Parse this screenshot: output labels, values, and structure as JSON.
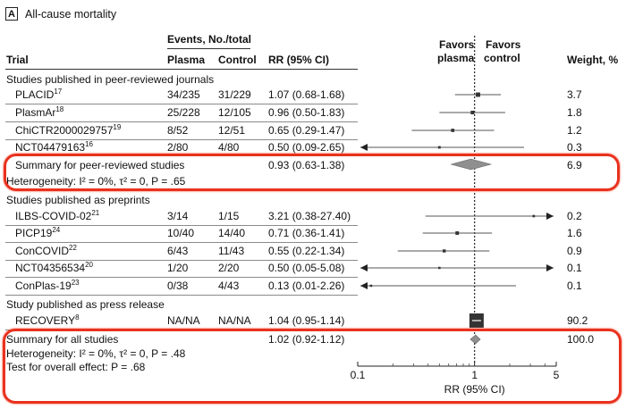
{
  "panel": {
    "letter": "A",
    "title": "All-cause mortality"
  },
  "headers": {
    "events": "Events, No./total",
    "trial": "Trial",
    "plasma": "Plasma",
    "control": "Control",
    "rr": "RR (95% CI)",
    "favors_plasma": [
      "Favors",
      "plasma"
    ],
    "favors_control": [
      "Favors",
      "control"
    ],
    "weight": "Weight, %"
  },
  "groups": [
    {
      "title": "Studies published in peer-reviewed journals"
    },
    {
      "title": "Studies published as preprints"
    },
    {
      "title": "Study published as press release"
    }
  ],
  "summaries": {
    "peer": {
      "label": "Summary for peer-reviewed studies",
      "rr": "0.93 (0.63-1.38)",
      "weight": "6.9",
      "heterogeneity": "Heterogeneity: I² = 0%, τ² = 0, P = .65"
    },
    "all": {
      "label": "Summary for all studies",
      "rr": "1.02 (0.92-1.12)",
      "weight": "100.0",
      "heterogeneity": "Heterogeneity: I² = 0%, τ² = 0, P = .48",
      "overall_test": "Test for overall effect: P = .68"
    }
  },
  "chart_data": {
    "type": "forest",
    "xscale": "log",
    "xlim": [
      0.1,
      5
    ],
    "xticks": [
      "0.1",
      "1",
      "5"
    ],
    "xlabel": "RR (95% CI)",
    "reference_line": 1,
    "studies": [
      {
        "name": "PLACID",
        "ref": "17",
        "plasma": "34/235",
        "control": "31/229",
        "rr_text": "1.07 (0.68-1.68)",
        "rr": 1.07,
        "lo": 0.68,
        "hi": 1.68,
        "weight": "3.7",
        "group": 0,
        "arrow_left": false,
        "arrow_right": false
      },
      {
        "name": "PlasmAr",
        "ref": "18",
        "plasma": "25/228",
        "control": "12/105",
        "rr_text": "0.96 (0.50-1.83)",
        "rr": 0.96,
        "lo": 0.5,
        "hi": 1.83,
        "weight": "1.8",
        "group": 0,
        "arrow_left": false,
        "arrow_right": false
      },
      {
        "name": "ChiCTR2000029757",
        "ref": "19",
        "plasma": "8/52",
        "control": "12/51",
        "rr_text": "0.65 (0.29-1.47)",
        "rr": 0.65,
        "lo": 0.29,
        "hi": 1.47,
        "weight": "1.2",
        "group": 0,
        "arrow_left": false,
        "arrow_right": false
      },
      {
        "name": "NCT04479163",
        "ref": "16",
        "plasma": "2/80",
        "control": "4/80",
        "rr_text": "0.50 (0.09-2.65)",
        "rr": 0.5,
        "lo": 0.09,
        "hi": 2.65,
        "weight": "0.3",
        "group": 0,
        "arrow_left": true,
        "arrow_right": false
      },
      {
        "name": "ILBS-COVID-02",
        "ref": "21",
        "plasma": "3/14",
        "control": "1/15",
        "rr_text": "3.21 (0.38-27.40)",
        "rr": 3.21,
        "lo": 0.38,
        "hi": 27.4,
        "weight": "0.2",
        "group": 1,
        "arrow_left": false,
        "arrow_right": true
      },
      {
        "name": "PICP19",
        "ref": "24",
        "plasma": "10/40",
        "control": "14/40",
        "rr_text": "0.71 (0.36-1.41)",
        "rr": 0.71,
        "lo": 0.36,
        "hi": 1.41,
        "weight": "1.6",
        "group": 1,
        "arrow_left": false,
        "arrow_right": false
      },
      {
        "name": "ConCOVID",
        "ref": "22",
        "plasma": "6/43",
        "control": "11/43",
        "rr_text": "0.55 (0.22-1.34)",
        "rr": 0.55,
        "lo": 0.22,
        "hi": 1.34,
        "weight": "0.9",
        "group": 1,
        "arrow_left": false,
        "arrow_right": false
      },
      {
        "name": "NCT04356534",
        "ref": "20",
        "plasma": "1/20",
        "control": "2/20",
        "rr_text": "0.50 (0.05-5.08)",
        "rr": 0.5,
        "lo": 0.05,
        "hi": 5.08,
        "weight": "0.1",
        "group": 1,
        "arrow_left": true,
        "arrow_right": true
      },
      {
        "name": "ConPlas-19",
        "ref": "23",
        "plasma": "0/38",
        "control": "4/43",
        "rr_text": "0.13 (0.01-2.26)",
        "rr": 0.13,
        "lo": 0.01,
        "hi": 2.26,
        "weight": "0.1",
        "group": 1,
        "arrow_left": true,
        "arrow_right": false
      },
      {
        "name": "RECOVERY",
        "ref": "8",
        "plasma": "NA/NA",
        "control": "NA/NA",
        "rr_text": "1.04 (0.95-1.14)",
        "rr": 1.04,
        "lo": 0.95,
        "hi": 1.14,
        "weight": "90.2",
        "group": 2,
        "arrow_left": false,
        "arrow_right": false
      }
    ],
    "pooled": [
      {
        "label": "Summary for peer-reviewed studies",
        "rr": 0.93,
        "lo": 0.63,
        "hi": 1.38
      },
      {
        "label": "Summary for all studies",
        "rr": 1.02,
        "lo": 0.92,
        "hi": 1.12
      }
    ],
    "colors": {
      "diamond": "#8f8f8f",
      "square": "#333333",
      "highlight": "#e8321f"
    }
  }
}
